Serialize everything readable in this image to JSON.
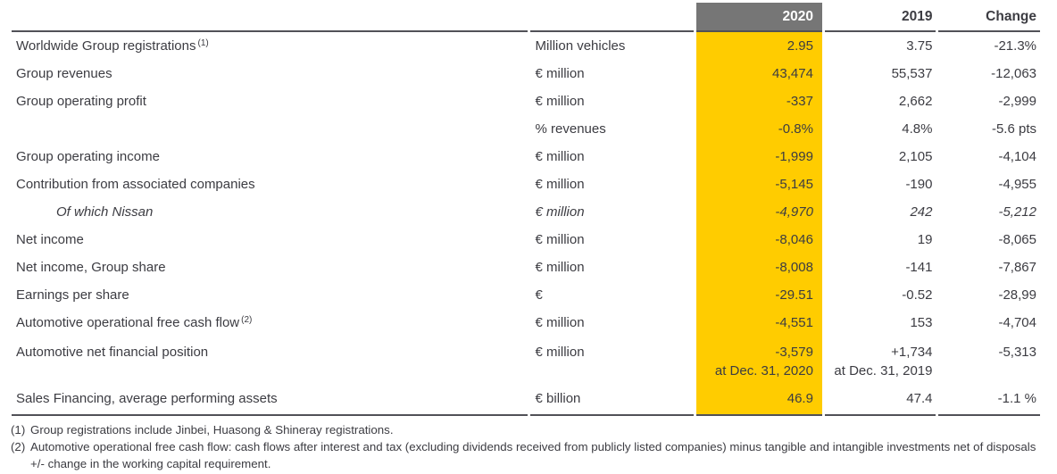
{
  "table": {
    "header": {
      "col2020": "2020",
      "col2019": "2019",
      "colChange": "Change"
    },
    "rows": [
      {
        "label": "Worldwide Group registrations",
        "sup": "(1)",
        "unit": "Million vehicles",
        "y2020": "2.95",
        "y2019": "3.75",
        "change": "-21.3%"
      },
      {
        "label": "Group revenues",
        "unit": "€ million",
        "y2020": "43,474",
        "y2019": "55,537",
        "change": "-12,063"
      },
      {
        "label": "Group operating profit",
        "unit": "€ million",
        "y2020": "-337",
        "y2019": "2,662",
        "change": "-2,999"
      },
      {
        "label": "",
        "unit": "% revenues",
        "y2020": "-0.8%",
        "y2019": "4.8%",
        "change": "-5.6 pts"
      },
      {
        "label": "Group operating income",
        "unit": "€ million",
        "y2020": "-1,999",
        "y2019": "2,105",
        "change": "-4,104"
      },
      {
        "label": "Contribution from associated companies",
        "unit": "€ million",
        "y2020": "-5,145",
        "y2019": "-190",
        "change": "-4,955"
      },
      {
        "label": "Of which Nissan",
        "italic": true,
        "unit": "€ million",
        "y2020": "-4,970",
        "y2019": "242",
        "change": "-5,212"
      },
      {
        "label": "Net income",
        "unit": "€ million",
        "y2020": "-8,046",
        "y2019": "19",
        "change": "-8,065"
      },
      {
        "label": "Net income, Group share",
        "unit": "€ million",
        "y2020": "-8,008",
        "y2019": "-141",
        "change": "-7,867"
      },
      {
        "label": "Earnings per share",
        "unit": "€",
        "y2020": "-29.51",
        "y2019": "-0.52",
        "change": "-28,99"
      },
      {
        "label": "Automotive operational free cash flow",
        "sup": "(2)",
        "unit": "€ million",
        "y2020": "-4,551",
        "y2019": "153",
        "change": "-4,704"
      },
      {
        "label": "Automotive net financial position",
        "unit": "€ million",
        "y2020": "-3,579",
        "y2020_note": "at Dec. 31, 2020",
        "y2019": "+1,734",
        "y2019_note": "at Dec. 31, 2019",
        "change": "-5,313"
      },
      {
        "label": "Sales Financing, average performing assets",
        "unit": "€ billion",
        "y2020": "46.9",
        "y2019": "47.4",
        "change": "-1.1 %"
      }
    ],
    "footnotes": [
      {
        "marker": "(1)",
        "text": "Group registrations include Jinbei, Huasong & Shineray registrations."
      },
      {
        "marker": "(2)",
        "text": "Automotive operational free cash flow: cash flows after interest and tax (excluding dividends received from publicly listed companies) minus tangible and intangible investments net of disposals +/- change in the working capital requirement."
      }
    ],
    "colors": {
      "accent_yellow": "#FFCC00",
      "header_gray": "#767676",
      "rule_dark": "#515157",
      "text": "#3c3c42"
    }
  }
}
